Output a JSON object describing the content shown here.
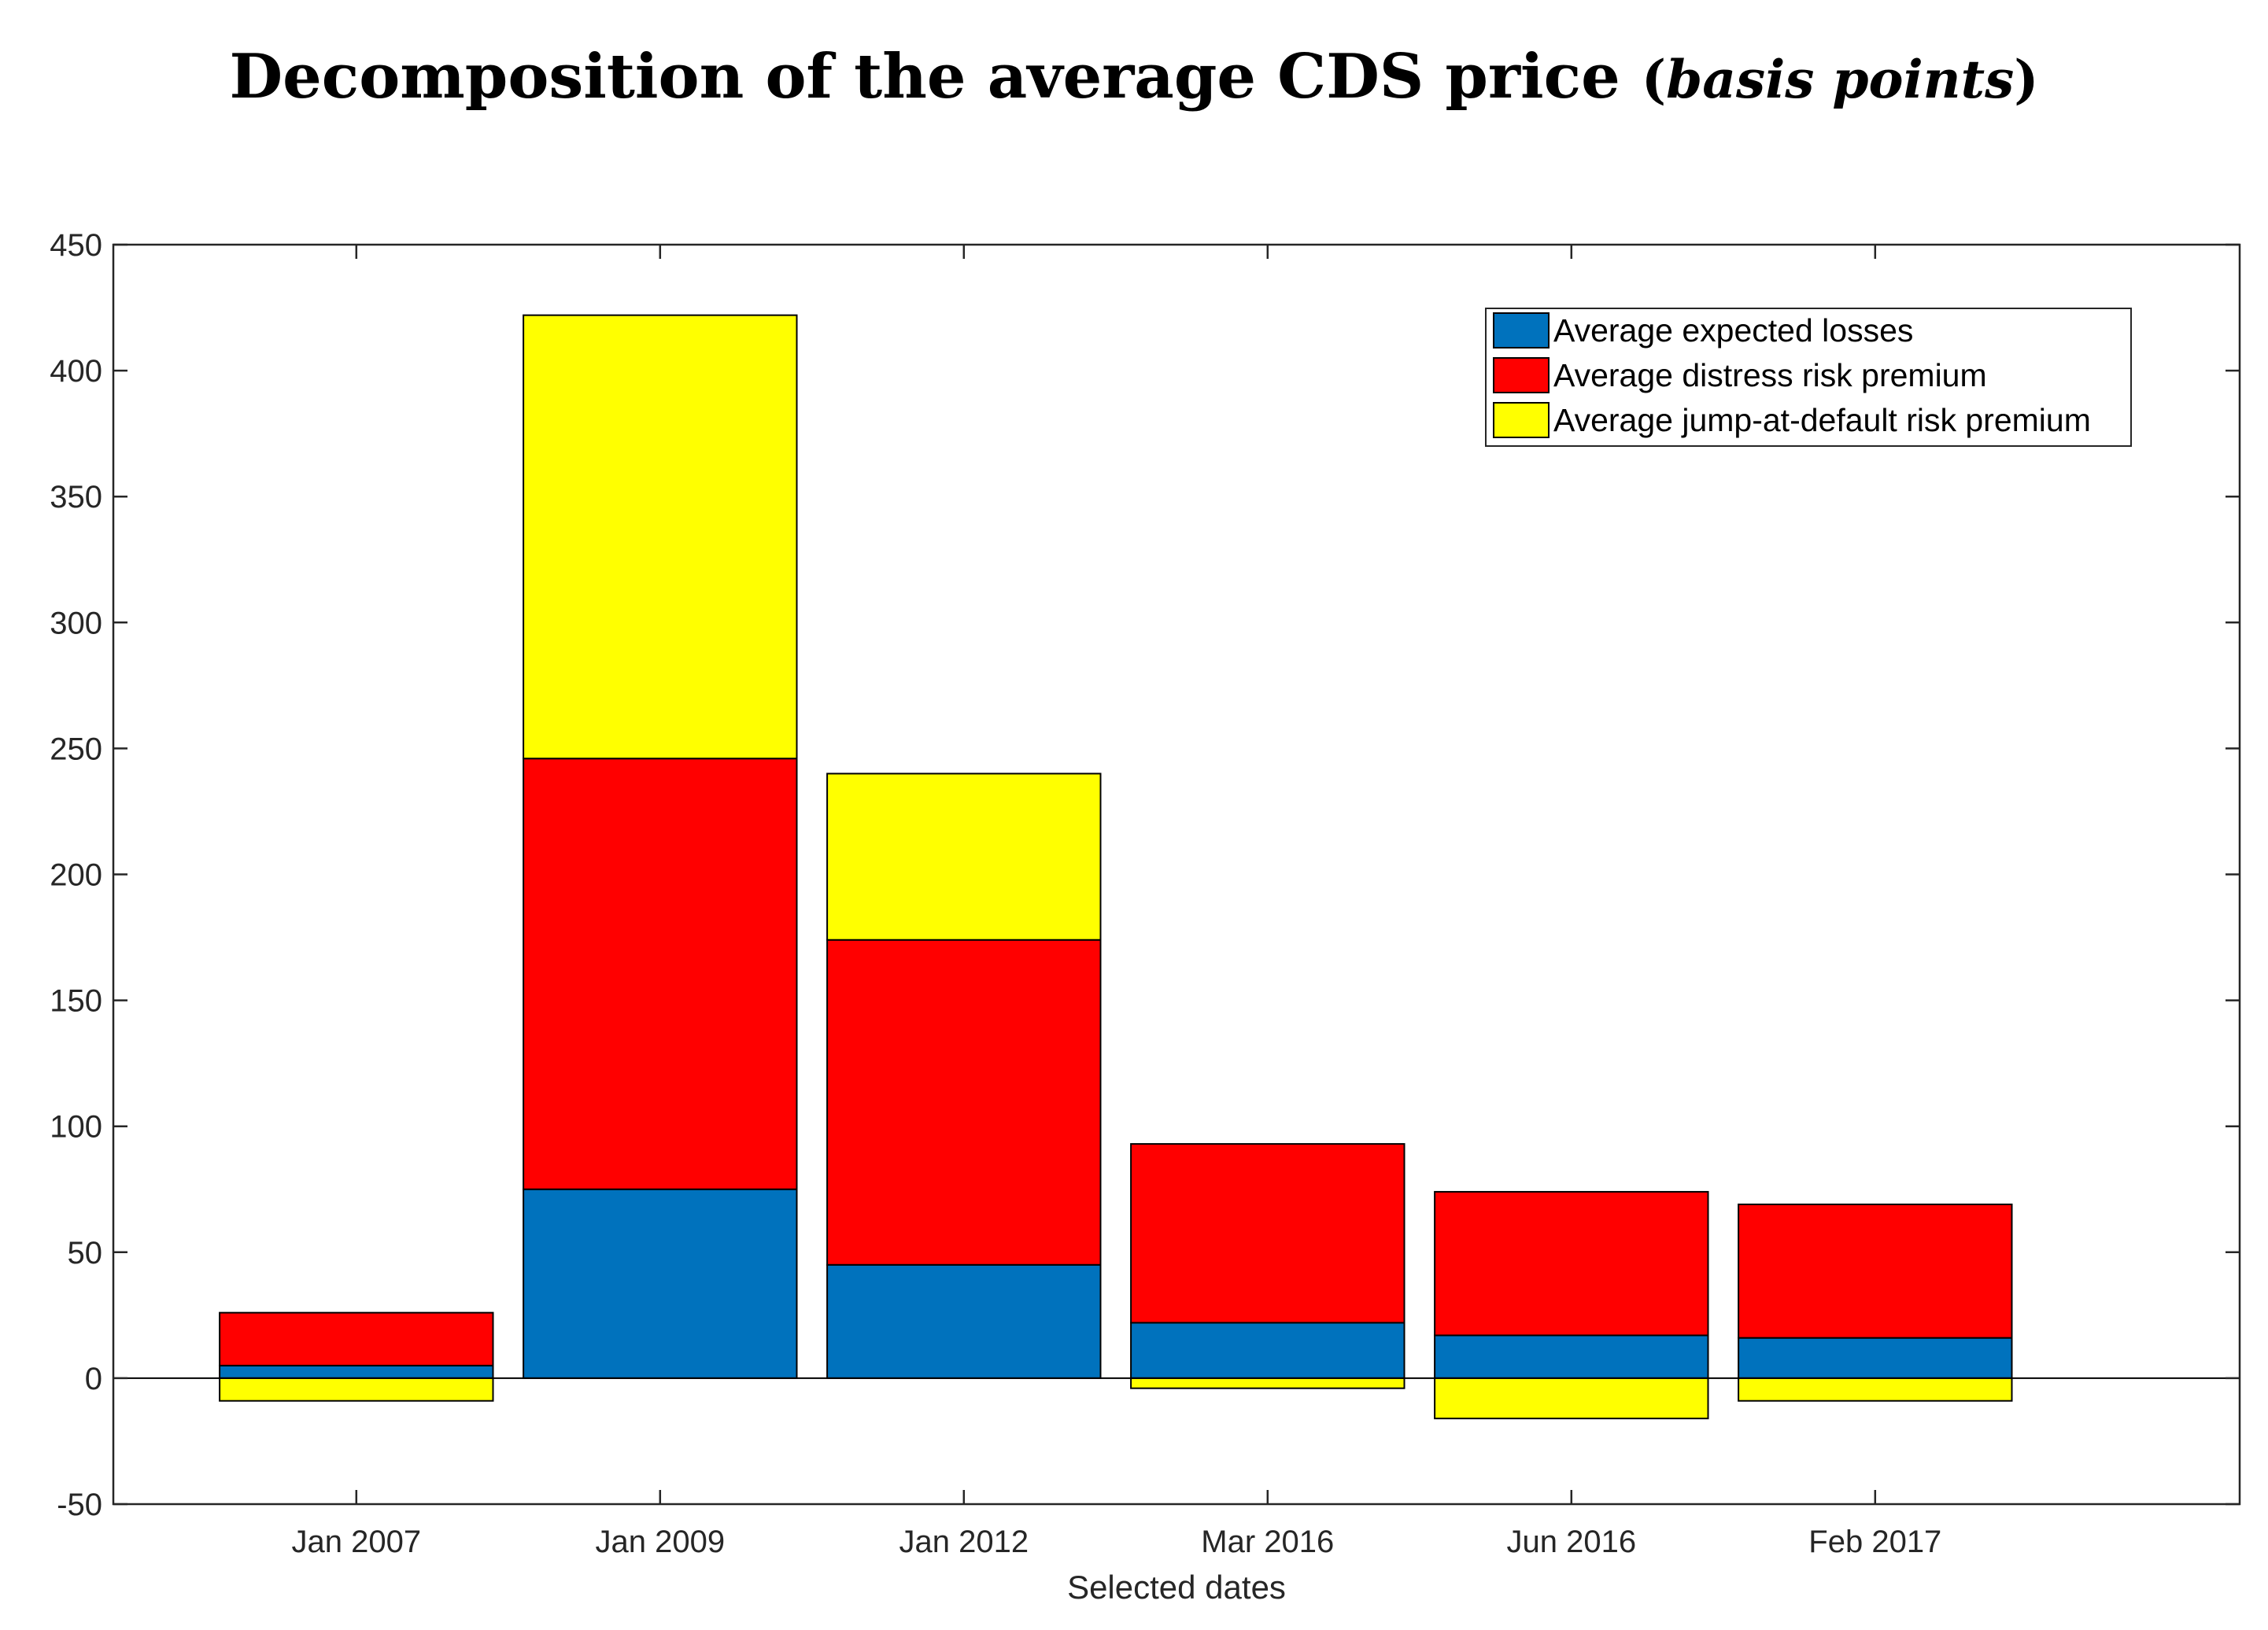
{
  "title": {
    "main": "Decomposition of the average CDS price ",
    "open_paren": "(",
    "unit": "basis points",
    "close_paren": ")"
  },
  "colors": {
    "expected_losses": "#0072BD",
    "distress_risk_premium": "#FF0000",
    "jump_at_default_risk_premium": "#FFFF00",
    "edge": "#000000",
    "axis": "#262626"
  },
  "chart_data": {
    "type": "bar",
    "stacked": true,
    "title": "Decomposition of the average CDS price (basis points)",
    "xlabel": "Selected dates",
    "ylabel": "",
    "categories": [
      "Jan 2007",
      "Jan 2009",
      "Jan 2012",
      "Mar 2016",
      "Jun 2016",
      "Feb 2017"
    ],
    "xlim": [
      0.2,
      7.2
    ],
    "ylim": [
      -50,
      450
    ],
    "yticks": [
      -50,
      0,
      50,
      100,
      150,
      200,
      250,
      300,
      350,
      400,
      450
    ],
    "series": [
      {
        "name": "Average expected losses",
        "color_key": "expected_losses",
        "values": [
          5,
          75,
          45,
          22,
          17,
          16
        ]
      },
      {
        "name": "Average distress risk premium",
        "color_key": "distress_risk_premium",
        "values": [
          21,
          171,
          129,
          71,
          57,
          53
        ]
      },
      {
        "name": "Average jump-at-default risk premium",
        "color_key": "jump_at_default_risk_premium",
        "values": [
          -9,
          176,
          66,
          -4,
          -16,
          -9
        ]
      }
    ],
    "legend_position": "top-right",
    "grid": false
  }
}
